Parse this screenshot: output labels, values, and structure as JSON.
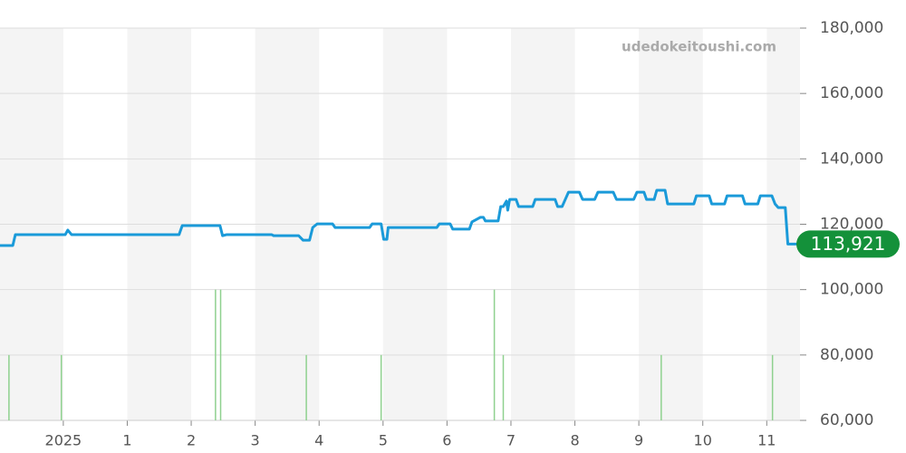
{
  "chart_data": {
    "type": "line",
    "watermark": "udedokeitoushi.com",
    "xlim": [
      -0.99,
      11.52
    ],
    "xticks": [
      {
        "value": 0,
        "label": "2025"
      },
      1,
      2,
      3,
      4,
      5,
      6,
      7,
      8,
      9,
      10,
      11
    ],
    "ylim": [
      60000,
      180000
    ],
    "yticks": [
      {
        "value": 60000,
        "label": "60,000"
      },
      {
        "value": 80000,
        "label": "80,000"
      },
      {
        "value": 100000,
        "label": "100,000"
      },
      {
        "value": 120000,
        "label": "120,000"
      },
      {
        "value": 140000,
        "label": "140,000"
      },
      {
        "value": 160000,
        "label": "160,000"
      },
      {
        "value": 180000,
        "label": "180,000"
      }
    ],
    "y2lim": [
      0,
      6
    ],
    "grid": true,
    "current_price": {
      "value": 113921,
      "label": "113,921",
      "color": "#14913a"
    },
    "series": [
      {
        "color": "#1a9ad9",
        "x": [
          -0.99,
          -0.79,
          -0.75,
          0.03,
          0.07,
          0.13,
          1.81,
          1.86,
          2.45,
          2.49,
          2.55,
          3.26,
          3.29,
          3.68,
          3.75,
          3.85,
          3.9,
          3.97,
          4.21,
          4.25,
          4.79,
          4.83,
          4.97,
          5.01,
          5.06,
          5.08,
          5.84,
          5.88,
          6.05,
          6.09,
          6.35,
          6.39,
          6.52,
          6.57,
          6.6,
          6.8,
          6.84,
          6.88,
          6.93,
          6.95,
          6.98,
          7.08,
          7.12,
          7.34,
          7.38,
          7.69,
          7.73,
          7.8,
          7.85,
          7.9,
          8.07,
          8.12,
          8.31,
          8.36,
          8.6,
          8.65,
          8.92,
          8.97,
          9.08,
          9.12,
          9.24,
          9.28,
          9.41,
          9.45,
          9.86,
          9.9,
          10.1,
          10.14,
          10.34,
          10.38,
          10.62,
          10.66,
          10.86,
          10.9,
          11.08,
          11.13,
          11.18,
          11.29,
          11.33,
          11.47
        ],
        "values": [
          113500,
          113500,
          116800,
          116800,
          118200,
          116800,
          116800,
          119600,
          119600,
          116500,
          116800,
          116800,
          116500,
          116500,
          115100,
          115100,
          119000,
          120100,
          120100,
          119000,
          119000,
          120100,
          120100,
          115400,
          115400,
          119000,
          119000,
          120100,
          120100,
          118500,
          118500,
          120700,
          122100,
          122100,
          121000,
          121000,
          125400,
          125400,
          127100,
          124300,
          127600,
          127600,
          125400,
          125400,
          127600,
          127600,
          125400,
          125400,
          127600,
          129800,
          129800,
          127600,
          127600,
          129800,
          129800,
          127600,
          127600,
          129800,
          129800,
          127600,
          127600,
          130400,
          130400,
          126200,
          126200,
          128700,
          128700,
          126200,
          126200,
          128700,
          128700,
          126200,
          126200,
          128700,
          128700,
          126200,
          125100,
          125100,
          113921,
          113921
        ]
      },
      {
        "color": "#8fd18f",
        "axis": "y2",
        "x": [
          -0.85,
          -0.03,
          2.38,
          2.46,
          3.8,
          4.97,
          6.74,
          6.88,
          9.35,
          11.09
        ],
        "values": [
          1,
          1,
          2,
          2,
          1,
          1,
          2,
          1,
          1,
          1
        ]
      }
    ]
  }
}
